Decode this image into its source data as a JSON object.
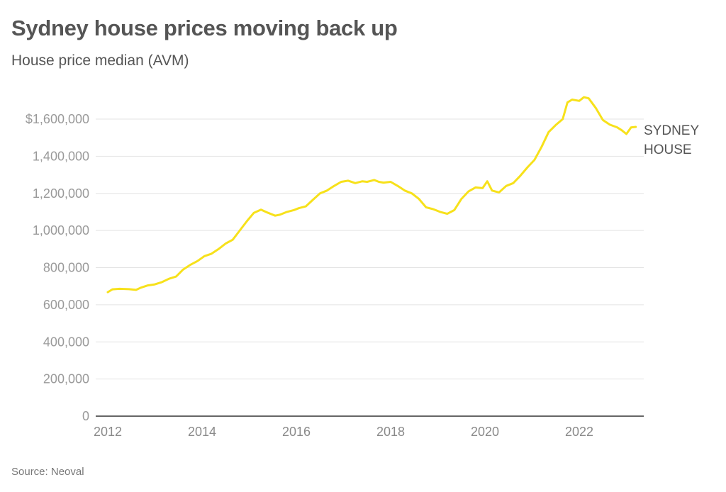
{
  "title": "Sydney house prices moving back up",
  "subtitle": "House price median (AVM)",
  "source": "Source: Neoval",
  "colors": {
    "line": "#f7e11b",
    "grid": "#e3e3e3",
    "axis": "#333333"
  },
  "chart_data": {
    "type": "line",
    "title": "Sydney house prices moving back up",
    "subtitle": "House price median (AVM)",
    "xlabel": "",
    "ylabel": "",
    "xlim": [
      2012,
      2023.3
    ],
    "ylim": [
      0,
      1700000
    ],
    "grid": true,
    "yticks": [
      0,
      200000,
      400000,
      600000,
      800000,
      1000000,
      1200000,
      1400000,
      1600000
    ],
    "ytick_labels": [
      "0",
      "200,000",
      "400,000",
      "600,000",
      "800,000",
      "1,000,000",
      "1,200,000",
      "1,400,000",
      "$1,600,000"
    ],
    "xticks": [
      2012,
      2014,
      2016,
      2018,
      2020,
      2022
    ],
    "xtick_labels": [
      "2012",
      "2014",
      "2016",
      "2018",
      "2020",
      "2022"
    ],
    "legend": "inline-right",
    "series": [
      {
        "name": "SYDNEY HOUSE",
        "label_lines": [
          "SYDNEY",
          "HOUSE"
        ],
        "x": [
          2012.0,
          2012.1,
          2012.25,
          2012.45,
          2012.6,
          2012.7,
          2012.85,
          2013.0,
          2013.15,
          2013.3,
          2013.45,
          2013.6,
          2013.75,
          2013.9,
          2014.05,
          2014.2,
          2014.35,
          2014.5,
          2014.65,
          2014.8,
          2014.95,
          2015.1,
          2015.25,
          2015.4,
          2015.55,
          2015.65,
          2015.8,
          2015.95,
          2016.05,
          2016.2,
          2016.35,
          2016.5,
          2016.65,
          2016.8,
          2016.95,
          2017.1,
          2017.25,
          2017.4,
          2017.5,
          2017.65,
          2017.75,
          2017.85,
          2018.0,
          2018.15,
          2018.3,
          2018.45,
          2018.6,
          2018.75,
          2018.9,
          2019.05,
          2019.2,
          2019.35,
          2019.5,
          2019.65,
          2019.8,
          2019.95,
          2020.05,
          2020.15,
          2020.3,
          2020.45,
          2020.6,
          2020.75,
          2020.9,
          2021.05,
          2021.2,
          2021.35,
          2021.5,
          2021.65,
          2021.75,
          2021.85,
          2022.0,
          2022.1,
          2022.2,
          2022.35,
          2022.5,
          2022.65,
          2022.8,
          2022.9,
          2023.0,
          2023.1,
          2023.2
        ],
        "y": [
          668000,
          683000,
          686000,
          684000,
          680000,
          692000,
          704000,
          710000,
          722000,
          740000,
          752000,
          790000,
          815000,
          835000,
          862000,
          875000,
          900000,
          930000,
          950000,
          1000000,
          1050000,
          1095000,
          1112000,
          1095000,
          1080000,
          1085000,
          1100000,
          1110000,
          1120000,
          1130000,
          1165000,
          1200000,
          1215000,
          1240000,
          1262000,
          1268000,
          1255000,
          1265000,
          1262000,
          1272000,
          1262000,
          1258000,
          1262000,
          1240000,
          1215000,
          1200000,
          1170000,
          1125000,
          1115000,
          1100000,
          1090000,
          1110000,
          1170000,
          1210000,
          1232000,
          1228000,
          1265000,
          1215000,
          1205000,
          1240000,
          1255000,
          1295000,
          1340000,
          1380000,
          1450000,
          1530000,
          1568000,
          1600000,
          1690000,
          1705000,
          1698000,
          1718000,
          1712000,
          1660000,
          1595000,
          1570000,
          1556000,
          1540000,
          1520000,
          1555000,
          1558000
        ]
      }
    ]
  }
}
